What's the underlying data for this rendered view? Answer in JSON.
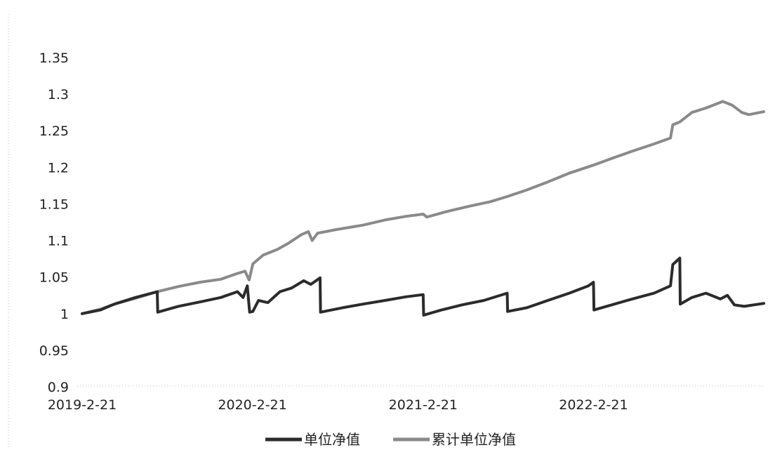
{
  "chart_data": {
    "type": "line",
    "title": "",
    "xlabel": "",
    "ylabel": "",
    "ylim": [
      0.9,
      1.35
    ],
    "y_ticks": [
      "1.35",
      "1.3",
      "1.25",
      "1.2",
      "1.15",
      "1.1",
      "1.05",
      "1",
      "0.95",
      "0.9"
    ],
    "x_ticks": [
      "2019-2-21",
      "2020-2-21",
      "2021-2-21",
      "2022-2-21"
    ],
    "x_range": [
      "2019-2-21",
      "2023-2-21"
    ],
    "grid": false,
    "legend_position": "bottom",
    "series": [
      {
        "name": "单位净值",
        "color": "#2b2b2b",
        "points": [
          [
            "2019-02-21",
            1.0
          ],
          [
            "2019-04-01",
            1.005
          ],
          [
            "2019-05-01",
            1.013
          ],
          [
            "2019-06-15",
            1.022
          ],
          [
            "2019-08-01",
            1.03
          ],
          [
            "2019-08-02",
            1.002
          ],
          [
            "2019-09-15",
            1.01
          ],
          [
            "2019-11-01",
            1.016
          ],
          [
            "2019-12-15",
            1.022
          ],
          [
            "2020-01-20",
            1.03
          ],
          [
            "2020-02-01",
            1.022
          ],
          [
            "2020-02-10",
            1.038
          ],
          [
            "2020-02-15",
            1.002
          ],
          [
            "2020-02-22",
            1.003
          ],
          [
            "2020-03-05",
            1.018
          ],
          [
            "2020-03-25",
            1.015
          ],
          [
            "2020-04-20",
            1.03
          ],
          [
            "2020-05-15",
            1.035
          ],
          [
            "2020-06-10",
            1.045
          ],
          [
            "2020-06-25",
            1.04
          ],
          [
            "2020-07-15",
            1.049
          ],
          [
            "2020-07-16",
            1.002
          ],
          [
            "2020-09-01",
            1.008
          ],
          [
            "2020-10-15",
            1.013
          ],
          [
            "2020-12-01",
            1.018
          ],
          [
            "2021-01-15",
            1.023
          ],
          [
            "2021-02-21",
            1.026
          ],
          [
            "2021-02-22",
            0.998
          ],
          [
            "2021-04-01",
            1.005
          ],
          [
            "2021-05-15",
            1.012
          ],
          [
            "2021-07-01",
            1.018
          ],
          [
            "2021-08-20",
            1.028
          ],
          [
            "2021-08-21",
            1.003
          ],
          [
            "2021-10-01",
            1.008
          ],
          [
            "2021-11-15",
            1.018
          ],
          [
            "2021-12-31",
            1.028
          ],
          [
            "2022-02-10",
            1.038
          ],
          [
            "2022-02-21",
            1.043
          ],
          [
            "2022-02-22",
            1.005
          ],
          [
            "2022-04-01",
            1.012
          ],
          [
            "2022-05-15",
            1.02
          ],
          [
            "2022-07-01",
            1.028
          ],
          [
            "2022-08-05",
            1.038
          ],
          [
            "2022-08-10",
            1.067
          ],
          [
            "2022-08-25",
            1.076
          ],
          [
            "2022-08-26",
            1.013
          ],
          [
            "2022-09-20",
            1.022
          ],
          [
            "2022-10-20",
            1.028
          ],
          [
            "2022-11-20",
            1.02
          ],
          [
            "2022-12-05",
            1.025
          ],
          [
            "2022-12-20",
            1.012
          ],
          [
            "2023-01-10",
            1.01
          ],
          [
            "2023-02-21",
            1.014
          ]
        ]
      },
      {
        "name": "累计单位净值",
        "color": "#8a8a8a",
        "points": [
          [
            "2019-02-21",
            1.0
          ],
          [
            "2019-04-01",
            1.006
          ],
          [
            "2019-05-01",
            1.013
          ],
          [
            "2019-06-15",
            1.021
          ],
          [
            "2019-08-01",
            1.03
          ],
          [
            "2019-09-15",
            1.037
          ],
          [
            "2019-11-01",
            1.043
          ],
          [
            "2019-12-15",
            1.047
          ],
          [
            "2020-01-20",
            1.055
          ],
          [
            "2020-02-05",
            1.058
          ],
          [
            "2020-02-14",
            1.046
          ],
          [
            "2020-02-22",
            1.068
          ],
          [
            "2020-03-15",
            1.08
          ],
          [
            "2020-04-15",
            1.088
          ],
          [
            "2020-05-10",
            1.097
          ],
          [
            "2020-06-05",
            1.108
          ],
          [
            "2020-06-20",
            1.112
          ],
          [
            "2020-06-28",
            1.1
          ],
          [
            "2020-07-10",
            1.11
          ],
          [
            "2020-08-20",
            1.115
          ],
          [
            "2020-10-15",
            1.121
          ],
          [
            "2020-12-01",
            1.128
          ],
          [
            "2021-01-15",
            1.133
          ],
          [
            "2021-02-21",
            1.136
          ],
          [
            "2021-03-01",
            1.132
          ],
          [
            "2021-04-15",
            1.14
          ],
          [
            "2021-06-01",
            1.147
          ],
          [
            "2021-07-15",
            1.153
          ],
          [
            "2021-08-20",
            1.16
          ],
          [
            "2021-10-01",
            1.169
          ],
          [
            "2021-11-15",
            1.18
          ],
          [
            "2021-12-31",
            1.192
          ],
          [
            "2022-02-21",
            1.203
          ],
          [
            "2022-04-01",
            1.212
          ],
          [
            "2022-05-15",
            1.222
          ],
          [
            "2022-07-01",
            1.232
          ],
          [
            "2022-08-05",
            1.24
          ],
          [
            "2022-08-10",
            1.258
          ],
          [
            "2022-08-25",
            1.262
          ],
          [
            "2022-09-20",
            1.275
          ],
          [
            "2022-10-20",
            1.281
          ],
          [
            "2022-11-25",
            1.29
          ],
          [
            "2022-12-15",
            1.285
          ],
          [
            "2023-01-05",
            1.275
          ],
          [
            "2023-01-20",
            1.272
          ],
          [
            "2023-02-21",
            1.276
          ]
        ]
      }
    ]
  }
}
